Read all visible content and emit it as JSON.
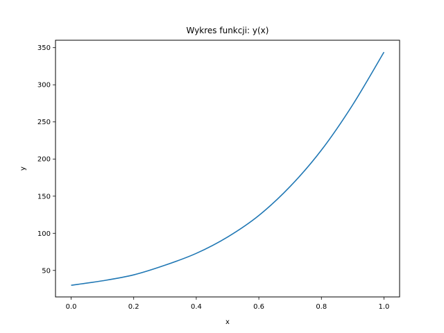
{
  "chart_data": {
    "type": "line",
    "title": "Wykres funkcji: y(x)",
    "xlabel": "x",
    "ylabel": "y",
    "xlim": [
      -0.05,
      1.05
    ],
    "ylim": [
      14.3,
      360.0
    ],
    "xticks": [
      0.0,
      0.2,
      0.4,
      0.6,
      0.8,
      1.0
    ],
    "xtick_labels": [
      "0.0",
      "0.2",
      "0.4",
      "0.6",
      "0.8",
      "1.0"
    ],
    "yticks": [
      50,
      100,
      150,
      200,
      250,
      300,
      350
    ],
    "ytick_labels": [
      "50",
      "100",
      "150",
      "200",
      "250",
      "300",
      "350"
    ],
    "grid": false,
    "series": [
      {
        "color": "#1f77b4",
        "x": [
          0.0,
          0.1,
          0.2,
          0.3,
          0.4,
          0.5,
          0.6,
          0.7,
          0.8,
          0.9,
          1.0
        ],
        "y": [
          30,
          36,
          44,
          57,
          73,
          95,
          124,
          163,
          212,
          273,
          344
        ]
      }
    ]
  }
}
